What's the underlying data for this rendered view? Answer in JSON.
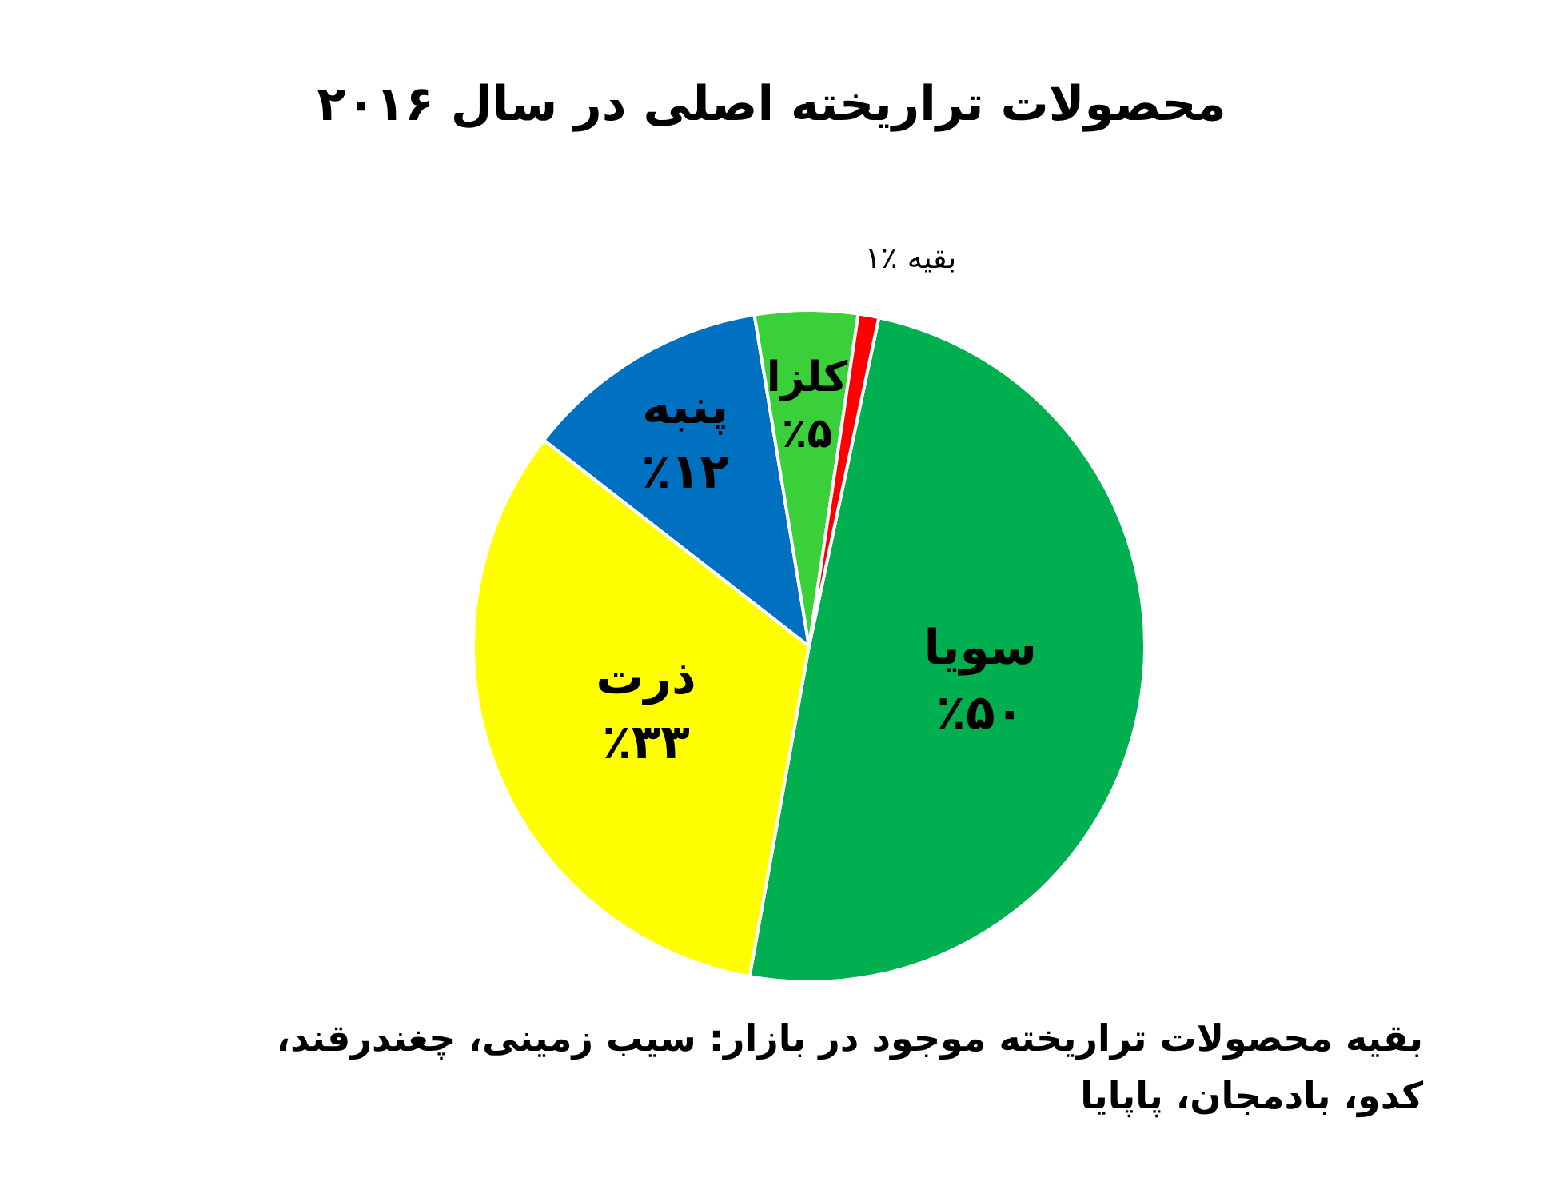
{
  "chart_data": {
    "type": "pie",
    "title": "محصولات تراریخته اصلی در سال ۲۰۱۶",
    "categories": [
      "سویا",
      "ذرت",
      "پنبه",
      "کلزا",
      "بقیه"
    ],
    "values": [
      50,
      33,
      12,
      5,
      1
    ],
    "colors": [
      "#00b050",
      "#ffff00",
      "#0070c0",
      "#3ad03a",
      "#ff0000"
    ],
    "value_labels": [
      "٪۵۰",
      "٪۳۳",
      "٪۱۲",
      "٪۵",
      "٪۱"
    ],
    "annotations": [
      "بقیه محصولات تراریخته موجود در بازار: سیب زمینی، چغندرقند، کدو، بادمجان، پاپایا"
    ]
  }
}
